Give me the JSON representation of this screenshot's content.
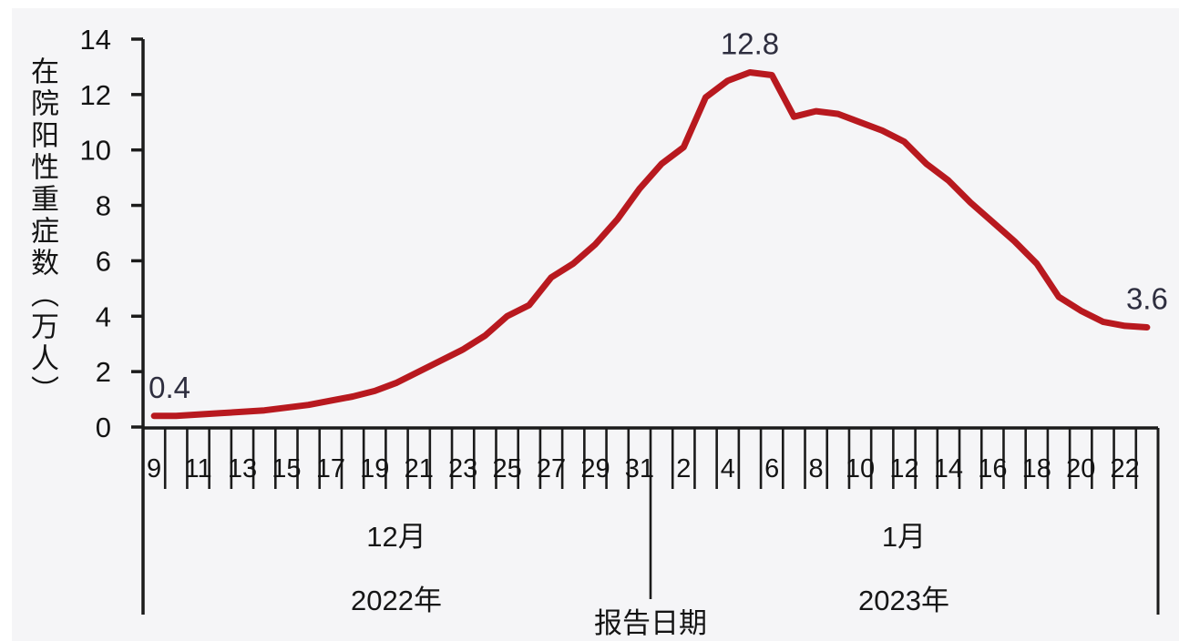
{
  "page": {
    "background": "#f5f5f7",
    "margin_color": "#ffffff"
  },
  "chart_data": {
    "type": "line",
    "title": "",
    "ylabel": "在院阳性重症数（万人）",
    "xlabel": "报告日期",
    "ylim": [
      0,
      14
    ],
    "yticks": [
      0,
      2,
      4,
      6,
      8,
      10,
      12,
      14
    ],
    "grid": false,
    "legend": null,
    "x_groups": [
      {
        "month_label": "12月",
        "year_label": "2022年",
        "first_day": 9,
        "num_days": 23,
        "shown_day_labels": [
          9,
          11,
          13,
          15,
          17,
          19,
          21,
          23,
          25,
          27,
          29,
          31
        ]
      },
      {
        "month_label": "1月",
        "year_label": "2023年",
        "first_day": 1,
        "num_days": 23,
        "shown_day_labels": [
          2,
          4,
          6,
          8,
          10,
          12,
          14,
          16,
          18,
          20,
          22
        ]
      }
    ],
    "x_days": [
      9,
      10,
      11,
      12,
      13,
      14,
      15,
      16,
      17,
      18,
      19,
      20,
      21,
      22,
      23,
      24,
      25,
      26,
      27,
      28,
      29,
      30,
      31,
      1,
      2,
      3,
      4,
      5,
      6,
      7,
      8,
      9,
      10,
      11,
      12,
      13,
      14,
      15,
      16,
      17,
      18,
      19,
      20,
      21,
      22,
      23
    ],
    "series": [
      {
        "name": "在院阳性重症数",
        "color": "#b8191f",
        "values": [
          0.4,
          0.4,
          0.45,
          0.5,
          0.55,
          0.6,
          0.7,
          0.8,
          0.95,
          1.1,
          1.3,
          1.6,
          2.0,
          2.4,
          2.8,
          3.3,
          4.0,
          4.4,
          5.4,
          5.9,
          6.6,
          7.5,
          8.6,
          9.5,
          10.1,
          11.9,
          12.5,
          12.8,
          12.7,
          11.2,
          11.4,
          11.3,
          11.0,
          10.7,
          10.3,
          9.5,
          8.9,
          8.1,
          7.4,
          6.7,
          5.9,
          4.7,
          4.2,
          3.8,
          3.65,
          3.6
        ]
      }
    ],
    "annotations": [
      {
        "label": "0.4",
        "x_index": 0,
        "value": 0.4
      },
      {
        "label": "12.8",
        "x_index": 27,
        "value": 12.8
      },
      {
        "label": "3.6",
        "x_index": 45,
        "value": 3.6
      }
    ],
    "axis_color": "#1b1b1b",
    "tick_label_color": "#141414",
    "annotation_color": "#2e2e3f"
  }
}
